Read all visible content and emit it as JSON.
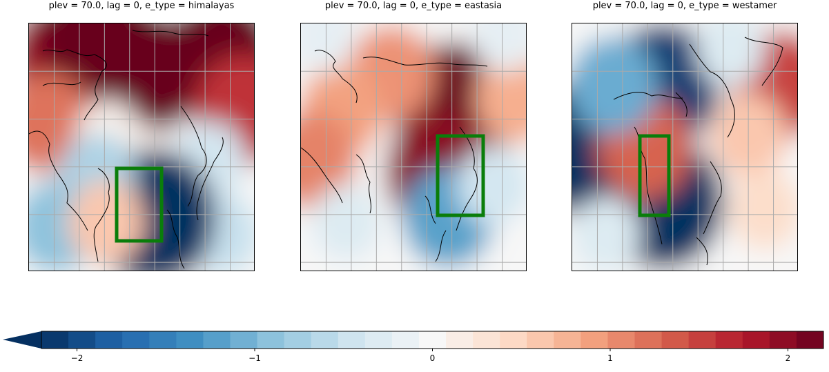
{
  "panels": [
    {
      "title": "plev = 70.0, lag = 0, e_type = himalayas",
      "anomaly_field": [
        {
          "u": 0.85,
          "v": 0.15,
          "value": 2.3
        },
        {
          "u": 0.5,
          "v": 0.2,
          "value": 2.2
        },
        {
          "u": 0.15,
          "v": 0.15,
          "value": 1.9
        },
        {
          "u": 0.3,
          "v": 0.05,
          "value": 2.2
        },
        {
          "u": 0.95,
          "v": 0.35,
          "value": 1.6
        },
        {
          "u": 0.08,
          "v": 0.4,
          "value": 1.2
        },
        {
          "u": 0.48,
          "v": 0.55,
          "value": 0.1
        },
        {
          "u": 0.35,
          "v": 0.45,
          "value": 0.1
        },
        {
          "u": 0.8,
          "v": 0.55,
          "value": -0.4
        },
        {
          "u": 0.85,
          "v": 0.85,
          "value": -0.5
        },
        {
          "u": 0.55,
          "v": 0.78,
          "value": -2.5
        },
        {
          "u": 0.3,
          "v": 0.62,
          "value": -0.7
        },
        {
          "u": 0.12,
          "v": 0.82,
          "value": -0.9
        },
        {
          "u": 0.34,
          "v": 0.8,
          "value": 0.6
        }
      ],
      "highlight_box": {
        "lon_range": [
          70,
          110
        ],
        "lat_range": [
          0,
          30
        ]
      }
    },
    {
      "title": "plev = 70.0, lag = 0, e_type = eastasia",
      "anomaly_field": [
        {
          "u": 0.68,
          "v": 0.35,
          "value": 2.6
        },
        {
          "u": 0.62,
          "v": 0.6,
          "value": 2.0
        },
        {
          "u": 0.4,
          "v": 0.2,
          "value": 1.0
        },
        {
          "u": 0.18,
          "v": 0.35,
          "value": 0.9
        },
        {
          "u": 0.95,
          "v": 0.3,
          "value": 0.8
        },
        {
          "u": 0.05,
          "v": 0.55,
          "value": 1.1
        },
        {
          "u": 0.2,
          "v": 0.8,
          "value": -0.3
        },
        {
          "u": 0.65,
          "v": 0.78,
          "value": -1.2
        },
        {
          "u": 0.85,
          "v": 0.65,
          "value": -0.4
        },
        {
          "u": 0.1,
          "v": 0.05,
          "value": -0.2
        },
        {
          "u": 0.9,
          "v": 0.05,
          "value": -0.2
        }
      ],
      "highlight_box": {
        "lon_range": [
          105,
          150
        ],
        "lat_range": [
          15,
          50
        ]
      }
    },
    {
      "title": "plev = 70.0, lag = 0, e_type = westamer",
      "anomaly_field": [
        {
          "u": 0.4,
          "v": 0.25,
          "value": -2.1
        },
        {
          "u": 0.05,
          "v": 0.5,
          "value": -2.5
        },
        {
          "u": 0.4,
          "v": 0.72,
          "value": -2.4
        },
        {
          "u": 0.32,
          "v": 0.5,
          "value": 1.3
        },
        {
          "u": 0.18,
          "v": 0.25,
          "value": -1.1
        },
        {
          "u": 0.92,
          "v": 0.25,
          "value": 1.5
        },
        {
          "u": 0.78,
          "v": 0.45,
          "value": 0.6
        },
        {
          "u": 0.85,
          "v": 0.75,
          "value": 0.4
        },
        {
          "u": 0.15,
          "v": 0.85,
          "value": -0.3
        },
        {
          "u": 0.7,
          "v": 0.1,
          "value": -0.3
        }
      ],
      "highlight_box": {
        "lon_range": [
          -125,
          -105
        ],
        "lat_range": [
          30,
          60
        ]
      }
    }
  ],
  "colorbar": {
    "ticks": [
      {
        "value": -2,
        "label": "−2"
      },
      {
        "value": -1,
        "label": "−1"
      },
      {
        "value": 0,
        "label": "0"
      },
      {
        "value": 1,
        "label": "1"
      },
      {
        "value": 2,
        "label": "2"
      }
    ],
    "range": [
      -2.2,
      2.2
    ],
    "n_levels": 29,
    "extend": "min",
    "colormap": "RdBu_r",
    "colors": [
      "#053061",
      "#2166ac",
      "#4393c3",
      "#92c5de",
      "#d1e5f0",
      "#f7f7f7",
      "#fddbc7",
      "#f4a582",
      "#d6604d",
      "#b2182b",
      "#67001f"
    ]
  },
  "box_color": "#0a7d0a",
  "coast_color": "#000000",
  "grid_color": "#aaaaaa"
}
